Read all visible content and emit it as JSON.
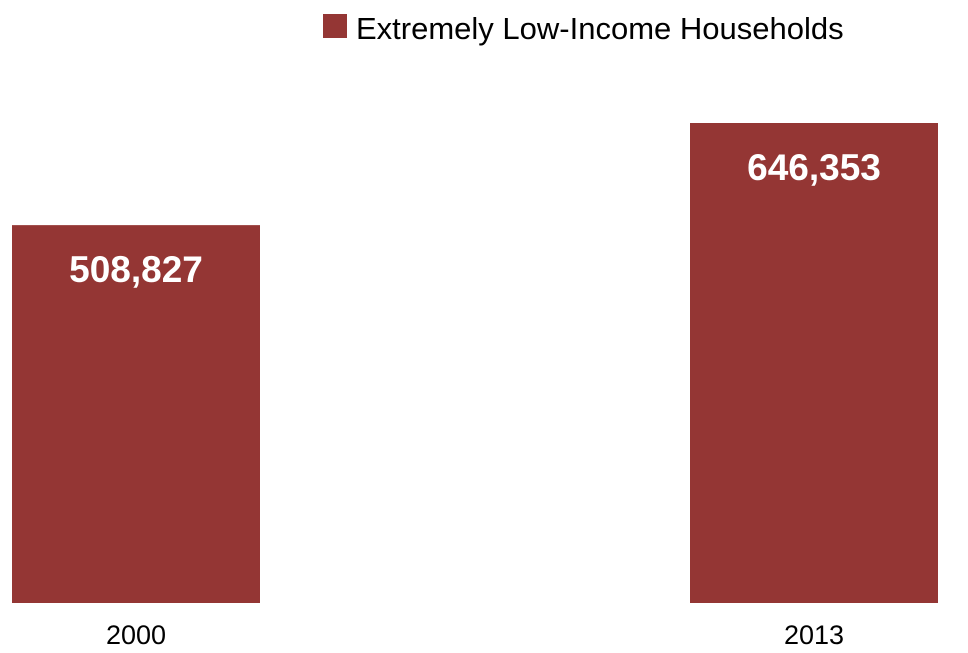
{
  "chart_data": {
    "type": "bar",
    "categories": [
      "2000",
      "2013"
    ],
    "series": [
      {
        "name": "Extremely Low-Income Households",
        "values": [
          508827,
          646353
        ]
      }
    ],
    "data_labels": [
      "508,827",
      "646,353"
    ],
    "legend": {
      "position": "top-right",
      "label": "Extremely Low-Income Households"
    },
    "colors": {
      "bar": "#943634",
      "label_text": "#ffffff",
      "axis_text": "#000000"
    },
    "grid": false,
    "y_axis_visible": false
  }
}
